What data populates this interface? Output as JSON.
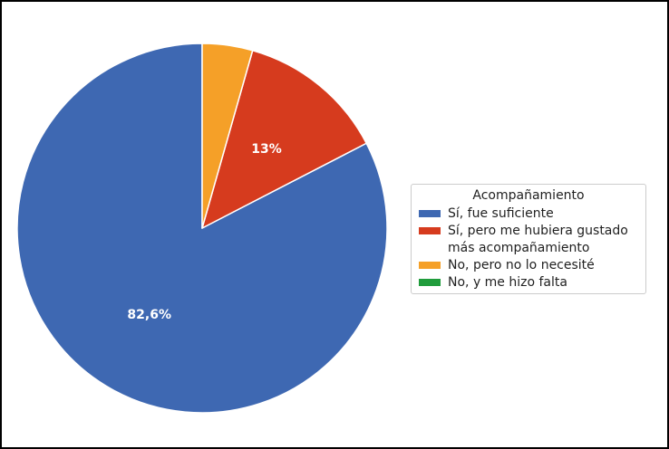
{
  "frame": {
    "background": "#ffffff",
    "border_color": "#000000"
  },
  "chart_data": {
    "type": "pie",
    "legend_title": "Acompañamiento",
    "legend_position": "right",
    "start_angle_deg": 90,
    "direction": "counterclockwise",
    "pct_label_color": "#ffffff",
    "legend_border_color": "#cccccc",
    "text_color": "#1f1f1f",
    "slices": [
      {
        "label": "Sí, fue suficiente",
        "value": 82.6,
        "pct_label": "82,6%",
        "color": "#3E68B2",
        "legend_lines": [
          "Sí, fue suficiente"
        ]
      },
      {
        "label": "Sí, pero me hubiera gustado más acompañamiento",
        "value": 13.0,
        "pct_label": "13%",
        "color": "#D63B1E",
        "legend_lines": [
          "Sí, pero me hubiera gustado",
          "más acompañamiento"
        ]
      },
      {
        "label": "No, pero no lo necesité",
        "value": 4.4,
        "pct_label": "",
        "color": "#F5A028",
        "legend_lines": [
          "No, pero no lo necesité"
        ]
      },
      {
        "label": "No, y me hizo falta",
        "value": 0.0,
        "pct_label": "",
        "color": "#209C3C",
        "legend_lines": [
          "No, y me hizo falta"
        ]
      }
    ]
  }
}
